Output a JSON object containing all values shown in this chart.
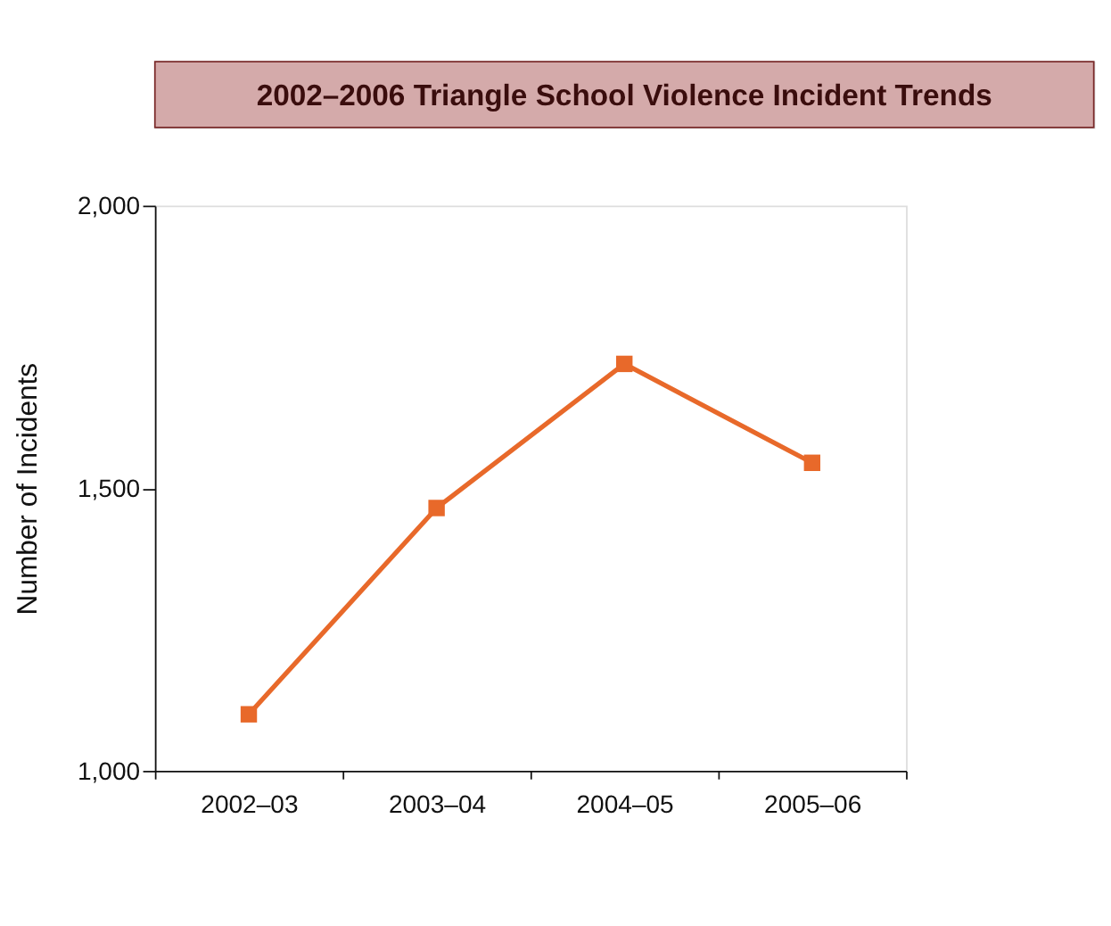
{
  "chart_data": {
    "type": "line",
    "title": "2002–2006 Triangle School Violence Incident Trends",
    "ylabel": "Number of Incidents",
    "categories": [
      "2002–03",
      "2003–04",
      "2004–05",
      "2005–06"
    ],
    "series": [
      {
        "color": "#e8692a",
        "values": [
          1100,
          1465,
          1720,
          1545
        ]
      }
    ],
    "ylim": [
      1000,
      2000
    ],
    "yticks": [
      {
        "value": 1000,
        "label": "1,000"
      },
      {
        "value": 1500,
        "label": "1,500"
      },
      {
        "value": 2000,
        "label": "2,000"
      }
    ],
    "marker": "square",
    "line_style": "solid",
    "grid": false,
    "legend": false
  }
}
